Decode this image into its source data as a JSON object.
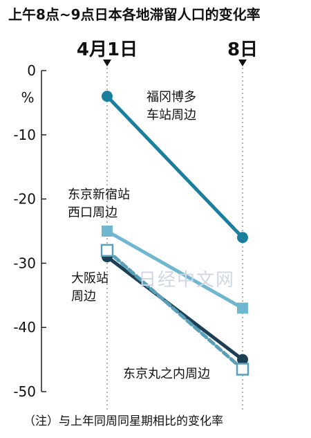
{
  "watermark": "日经中文网",
  "chart_data": {
    "type": "line",
    "title": "上午8点~9点日本各地滞留人口的变化率",
    "ylabel": "%",
    "x": [
      "4月1日",
      "8日"
    ],
    "ylim": [
      -50,
      0
    ],
    "yticks": [
      0,
      -10,
      -20,
      -30,
      -40,
      -50
    ],
    "grid": false,
    "note": "（注）与上年同周同星期相比的变化率",
    "series": [
      {
        "name": "福冈博多车站周边",
        "label_lines": [
          "福冈博多",
          "车站周边"
        ],
        "values": [
          -4,
          -26
        ],
        "color": "#1a7f9c",
        "marker": "circle"
      },
      {
        "name": "东京新宿站西口周边",
        "label_lines": [
          "东京新宿站",
          "西口周边"
        ],
        "values": [
          -25,
          -37
        ],
        "color": "#6fb6cf",
        "marker": "square"
      },
      {
        "name": "大阪站周边",
        "label_lines": [
          "大阪站",
          "周边"
        ],
        "values": [
          -29,
          -45
        ],
        "color": "#1d3f55",
        "marker": "circle"
      },
      {
        "name": "东京丸之内周边",
        "label_lines": [
          "东京丸之内周边"
        ],
        "values": [
          -28,
          -46.5
        ],
        "color": "#5a9fb8",
        "marker": "open-square",
        "dashed": true
      }
    ]
  }
}
